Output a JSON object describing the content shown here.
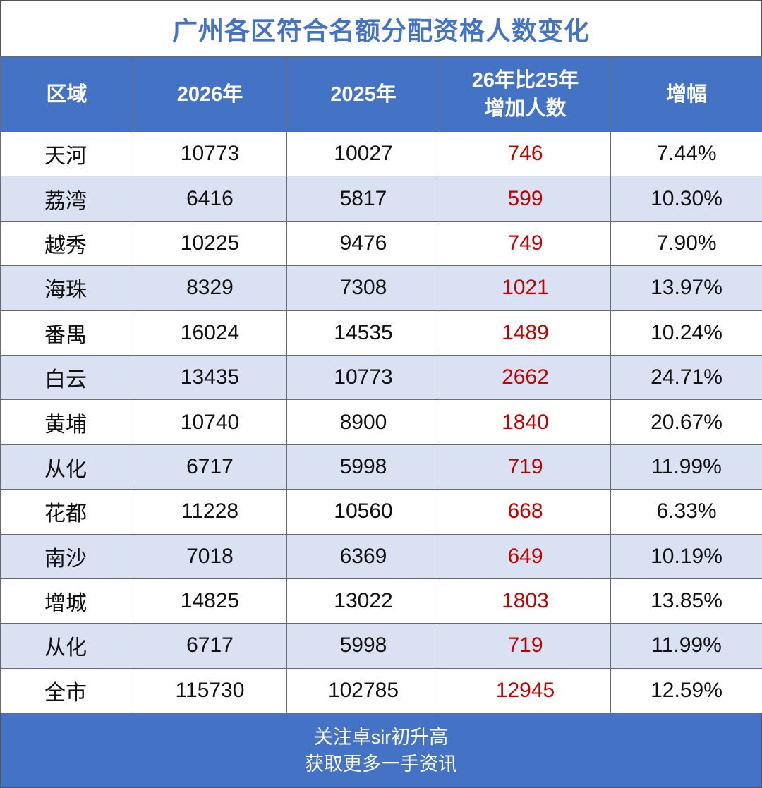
{
  "title": "广州各区符合名额分配资格人数变化",
  "table": {
    "header": [
      "区域",
      "2026年",
      "2025年",
      "26年比25年\n增加人数",
      "增幅"
    ],
    "rows": [
      [
        "天河",
        "10773",
        "10027",
        "746",
        "7.44%"
      ],
      [
        "荔湾",
        "6416",
        "5817",
        "599",
        "10.30%"
      ],
      [
        "越秀",
        "10225",
        "9476",
        "749",
        "7.90%"
      ],
      [
        "海珠",
        "8329",
        "7308",
        "1021",
        "13.97%"
      ],
      [
        "番禺",
        "16024",
        "14535",
        "1489",
        "10.24%"
      ],
      [
        "白云",
        "13435",
        "10773",
        "2662",
        "24.71%"
      ],
      [
        "黄埔",
        "10740",
        "8900",
        "1840",
        "20.67%"
      ],
      [
        "从化",
        "6717",
        "5998",
        "719",
        "11.99%"
      ],
      [
        "花都",
        "11228",
        "10560",
        "668",
        "6.33%"
      ],
      [
        "南沙",
        "7018",
        "6369",
        "649",
        "10.19%"
      ],
      [
        "增城",
        "14825",
        "13022",
        "1803",
        "13.85%"
      ],
      [
        "从化",
        "6717",
        "5998",
        "719",
        "11.99%"
      ],
      [
        "全市",
        "115730",
        "102785",
        "12945",
        "12.59%"
      ]
    ]
  },
  "footer": {
    "lines": [
      "关注卓sir初升高",
      "获取更多一手资讯"
    ]
  }
}
